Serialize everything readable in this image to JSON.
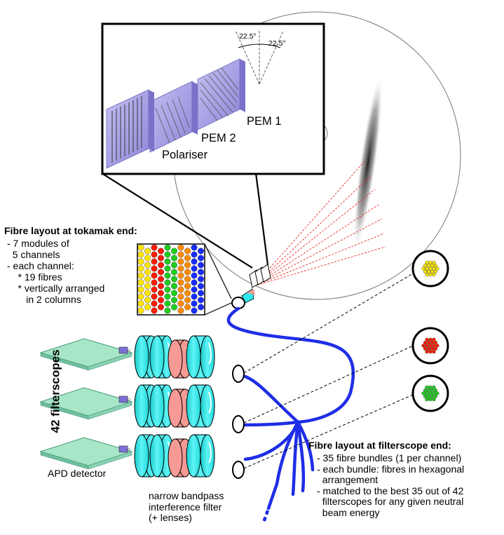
{
  "inset": {
    "angle_left": "22.5°",
    "angle_right": "22.5°",
    "labels": {
      "pem1": "PEM 1",
      "pem2": "PEM 2",
      "polariser": "Polariser"
    }
  },
  "tokamak_layout": {
    "title": "Fibre layout at tokamak end:",
    "lines": [
      "- 7 modules of",
      "  5 channels",
      "- each channel:",
      "    * 19 fibres",
      "    * vertically arranged",
      "       in 2 columns"
    ],
    "column_colors": [
      "#ffe600",
      "#ff1a00",
      "#1fcc1f",
      "#ff8c00",
      "#1a2cff"
    ]
  },
  "filterscopes": {
    "title": "42 filterscopes",
    "detector_label": "APD detector",
    "filter_label_lines": [
      "narrow bandpass",
      "interference filter",
      "(+ lenses)"
    ]
  },
  "filterscope_layout": {
    "title": "Fibre layout at filterscope end:",
    "lines": [
      "- 35 fibre bundles (1 per channel)",
      "- each bundle: fibres in hexagonal",
      "  arrangement",
      "- matched to the best 35 out of 42",
      "  filterscopes for any given neutral",
      "  beam energy"
    ],
    "bundle_colors": [
      "#ffe600",
      "#ff1a00",
      "#1fcc1f"
    ]
  },
  "colors": {
    "fibre_cable": "#1f2ee6",
    "lens": "#2ee8ea",
    "filter": "#f59a94",
    "detector_board": "#a8e6c8",
    "pem": "#a9a3e8",
    "sightline": "#e6332a"
  }
}
